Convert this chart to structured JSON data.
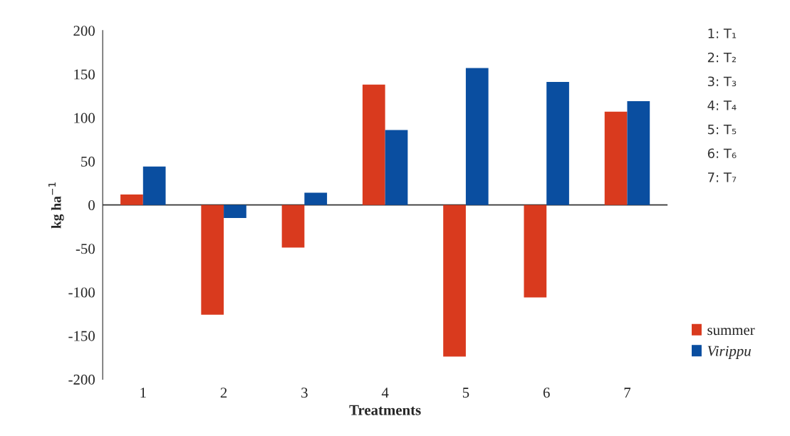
{
  "chart_data": {
    "type": "bar",
    "xlabel": "Treatments",
    "ylabel": "kg ha$^{−1}$",
    "categories": [
      "1",
      "2",
      "3",
      "4",
      "5",
      "6",
      "7"
    ],
    "series": [
      {
        "name": "summer",
        "color": "#d93a1e",
        "values": [
          12,
          -126,
          -49,
          138,
          -174,
          -106,
          107
        ]
      },
      {
        "name": "Virippu",
        "color": "#0a4ea0",
        "values": [
          44,
          -15,
          14,
          86,
          157,
          141,
          119
        ]
      }
    ],
    "ylim": [
      -200,
      200
    ],
    "yticks": [
      -200,
      -150,
      -100,
      -50,
      0,
      50,
      100,
      150,
      200
    ],
    "grid": false,
    "ref_lines": [
      {
        "axis": "y",
        "value": 0,
        "color": "#333333"
      }
    ],
    "legend": "bottom right",
    "annotations": [
      "1: T₁",
      "2: T₂",
      "3: T₃",
      "4: T₄",
      "5: T₅",
      "6: T₆",
      "7: T₇"
    ]
  }
}
